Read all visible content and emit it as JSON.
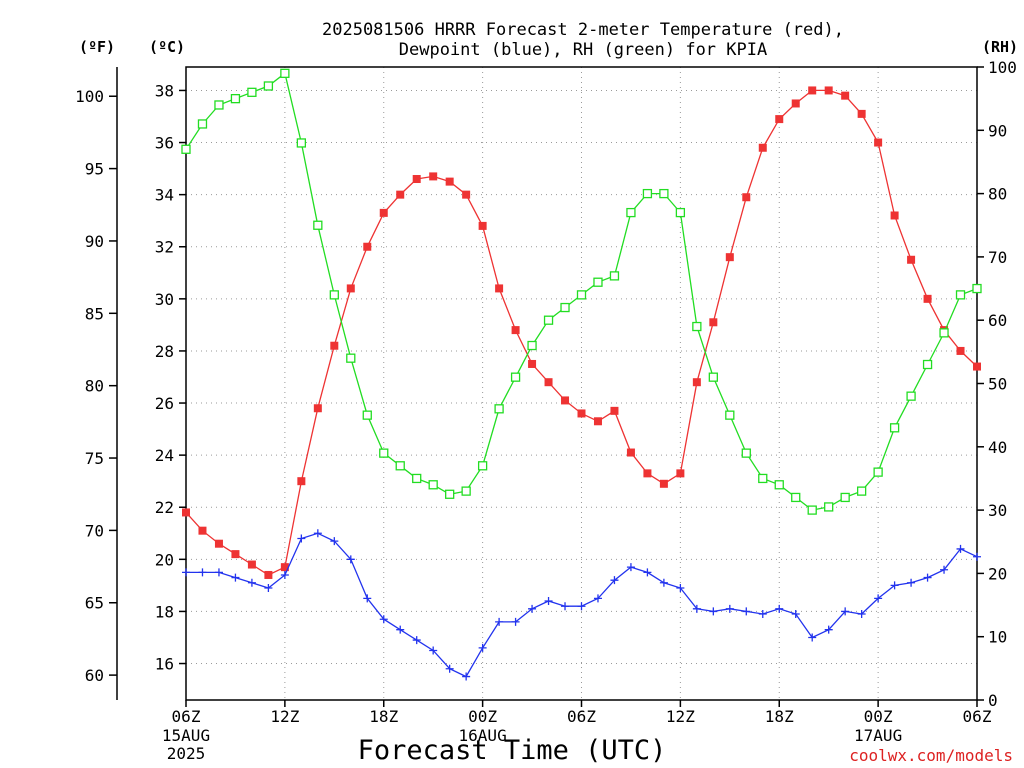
{
  "chart_data": {
    "type": "line",
    "title_line1": "2025081506 HRRR Forecast 2-meter Temperature (red),",
    "title_line2": "Dewpoint (blue), RH (green) for KPIA",
    "xlabel": "Forecast Time (UTC)",
    "credit": "coolwx.com/models",
    "axis_units": {
      "fahrenheit": "(ºF)",
      "celsius": "(ºC)",
      "rh": "(RH)"
    },
    "x_ticks": [
      "06Z",
      "12Z",
      "18Z",
      "00Z",
      "06Z",
      "12Z",
      "18Z",
      "00Z",
      "06Z"
    ],
    "date_labels": [
      {
        "tick": 0,
        "lines": [
          "15AUG",
          "2025"
        ]
      },
      {
        "tick": 3,
        "lines": [
          "16AUG"
        ]
      },
      {
        "tick": 7,
        "lines": [
          "17AUG"
        ]
      }
    ],
    "fahrenheit_ticks": [
      "60",
      "65",
      "70",
      "75",
      "80",
      "85",
      "90",
      "95",
      "100"
    ],
    "celsius_ticks": [
      "16",
      "18",
      "20",
      "22",
      "24",
      "26",
      "28",
      "30",
      "32",
      "34",
      "36",
      "38"
    ],
    "rh_ticks": [
      "0",
      "10",
      "20",
      "30",
      "40",
      "50",
      "60",
      "70",
      "80",
      "90",
      "100"
    ],
    "ylim_celsius": [
      14.6,
      38.9
    ],
    "ylim_rh": [
      0,
      100
    ],
    "xlim_hours": [
      0,
      48
    ],
    "grid": true,
    "series": [
      {
        "name": "Temperature",
        "unit": "°C",
        "color": "#ee3333",
        "marker": "filled-square",
        "axis": "celsius",
        "x": [
          0,
          1,
          2,
          3,
          4,
          5,
          6,
          7,
          8,
          9,
          10,
          11,
          12,
          13,
          14,
          15,
          16,
          17,
          18,
          19,
          20,
          21,
          22,
          23,
          24,
          25,
          26,
          27,
          28,
          29,
          30,
          31,
          32,
          33,
          34,
          35,
          36,
          37,
          38,
          39,
          40,
          41,
          42,
          43,
          44,
          45,
          46,
          47,
          48
        ],
        "values": [
          21.8,
          21.1,
          20.6,
          20.2,
          19.8,
          19.4,
          19.7,
          23.0,
          25.8,
          28.2,
          30.4,
          32.0,
          33.3,
          34.0,
          34.6,
          34.7,
          34.5,
          34.0,
          32.8,
          30.4,
          28.8,
          27.5,
          26.8,
          26.1,
          25.6,
          25.3,
          25.7,
          24.1,
          23.3,
          22.9,
          23.3,
          26.8,
          29.1,
          31.6,
          33.9,
          35.8,
          36.9,
          37.5,
          38.0,
          38.0,
          37.8,
          37.1,
          36.0,
          33.2,
          31.5,
          30.0,
          28.8,
          28.0,
          27.4
        ]
      },
      {
        "name": "Dewpoint",
        "unit": "°C",
        "color": "#2233ee",
        "marker": "plus",
        "axis": "celsius",
        "x": [
          0,
          1,
          2,
          3,
          4,
          5,
          6,
          7,
          8,
          9,
          10,
          11,
          12,
          13,
          14,
          15,
          16,
          17,
          18,
          19,
          20,
          21,
          22,
          23,
          24,
          25,
          26,
          27,
          28,
          29,
          30,
          31,
          32,
          33,
          34,
          35,
          36,
          37,
          38,
          39,
          40,
          41,
          42,
          43,
          44,
          45,
          46,
          47,
          48
        ],
        "values": [
          19.5,
          19.5,
          19.5,
          19.3,
          19.1,
          18.9,
          19.4,
          20.8,
          21.0,
          20.7,
          20.0,
          18.5,
          17.7,
          17.3,
          16.9,
          16.5,
          15.8,
          15.5,
          16.6,
          17.6,
          17.6,
          18.1,
          18.4,
          18.2,
          18.2,
          18.5,
          19.2,
          19.7,
          19.5,
          19.1,
          18.9,
          18.1,
          18.0,
          18.1,
          18.0,
          17.9,
          18.1,
          17.9,
          17.0,
          17.3,
          18.0,
          17.9,
          18.5,
          19.0,
          19.1,
          19.3,
          19.6,
          20.4,
          20.1
        ]
      },
      {
        "name": "RH",
        "unit": "%",
        "color": "#22dd22",
        "marker": "open-square",
        "axis": "rh",
        "x": [
          0,
          1,
          2,
          3,
          4,
          5,
          6,
          7,
          8,
          9,
          10,
          11,
          12,
          13,
          14,
          15,
          16,
          17,
          18,
          19,
          20,
          21,
          22,
          23,
          24,
          25,
          26,
          27,
          28,
          29,
          30,
          31,
          32,
          33,
          34,
          35,
          36,
          37,
          38,
          39,
          40,
          41,
          42,
          43,
          44,
          45,
          46,
          47,
          48
        ],
        "values": [
          87,
          91,
          94,
          95,
          96,
          97,
          99,
          88,
          75,
          64,
          54,
          45,
          39,
          37,
          35,
          34,
          32.5,
          33,
          37,
          46,
          51,
          56,
          60,
          62,
          64,
          66,
          67,
          77,
          80,
          80,
          77,
          59,
          51,
          45,
          39,
          35,
          34,
          32,
          30,
          30.5,
          32,
          33,
          36,
          43,
          48,
          53,
          58,
          64,
          65
        ]
      }
    ]
  }
}
